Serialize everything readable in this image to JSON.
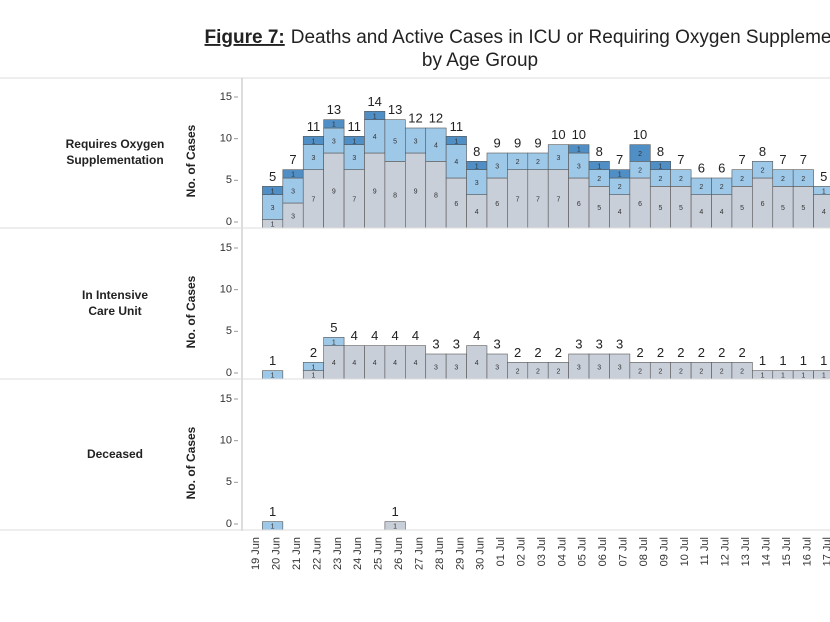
{
  "chart_data": {
    "type": "bar",
    "stacked": true,
    "title_prefix": "Figure 7:",
    "title": "Deaths and Active Cases in ICU or Requiring Oxygen Suppleme",
    "subtitle": "by Age Group",
    "ylabel": "No. of Cases",
    "ylim": [
      0,
      18
    ],
    "yticks": [
      0,
      5,
      10,
      15
    ],
    "categories": [
      "19 Jun",
      "20 Jun",
      "21 Jun",
      "22 Jun",
      "23 Jun",
      "24 Jun",
      "25 Jun",
      "26 Jun",
      "27 Jun",
      "28 Jun",
      "29 Jun",
      "30 Jun",
      "01 Jul",
      "02 Jul",
      "03 Jul",
      "04 Jul",
      "05 Jul",
      "06 Jul",
      "07 Jul",
      "08 Jul",
      "09 Jul",
      "10 Jul",
      "11 Jul",
      "12 Jul",
      "13 Jul",
      "14 Jul",
      "15 Jul",
      "16 Jul",
      "17 Jul"
    ],
    "panels": [
      {
        "label": "Requires Oxygen Supplementation",
        "series": [
          {
            "color": "#c9cfd9",
            "values": [
              null,
              1,
              3,
              7,
              9,
              7,
              9,
              8,
              9,
              8,
              6,
              4,
              6,
              7,
              7,
              7,
              6,
              5,
              4,
              6,
              5,
              5,
              4,
              4,
              5,
              6,
              5,
              5,
              4
            ]
          },
          {
            "color": "#9ec8e8",
            "values": [
              null,
              3,
              3,
              3,
              3,
              3,
              4,
              5,
              3,
              4,
              4,
              3,
              3,
              2,
              2,
              3,
              3,
              2,
              2,
              2,
              2,
              2,
              2,
              2,
              2,
              2,
              2,
              2,
              1
            ]
          },
          {
            "color": "#4f8fc6",
            "values": [
              null,
              1,
              1,
              1,
              1,
              1,
              1,
              0,
              0,
              0,
              1,
              1,
              0,
              0,
              0,
              0,
              1,
              1,
              1,
              2,
              1,
              0,
              0,
              0,
              0,
              0,
              0,
              0,
              0
            ]
          }
        ],
        "totals": [
          null,
          5,
          7,
          11,
          13,
          11,
          14,
          13,
          12,
          12,
          11,
          8,
          9,
          9,
          9,
          10,
          10,
          8,
          7,
          10,
          8,
          7,
          6,
          6,
          7,
          8,
          7,
          7,
          5
        ]
      },
      {
        "label": "In Intensive Care Unit",
        "series": [
          {
            "color": "#c9cfd9",
            "values": [
              null,
              0,
              null,
              1,
              4,
              4,
              4,
              4,
              4,
              3,
              3,
              4,
              3,
              2,
              2,
              2,
              3,
              3,
              3,
              2,
              2,
              2,
              2,
              2,
              2,
              1,
              1,
              1,
              1
            ]
          },
          {
            "color": "#9ec8e8",
            "values": [
              null,
              1,
              null,
              1,
              1,
              0,
              0,
              0,
              0,
              0,
              0,
              0,
              0,
              0,
              0,
              0,
              0,
              0,
              0,
              0,
              0,
              0,
              0,
              0,
              0,
              0,
              0,
              0,
              0
            ]
          }
        ],
        "totals": [
          null,
          1,
          null,
          2,
          5,
          4,
          4,
          4,
          4,
          3,
          3,
          4,
          3,
          2,
          2,
          2,
          3,
          3,
          3,
          2,
          2,
          2,
          2,
          2,
          2,
          1,
          1,
          1,
          1
        ]
      },
      {
        "label": "Deceased",
        "series": [
          {
            "color": "#c9cfd9",
            "values": [
              null,
              null,
              null,
              null,
              null,
              null,
              null,
              1,
              null,
              null,
              null,
              null,
              null,
              null,
              null,
              null,
              null,
              null,
              null,
              null,
              null,
              null,
              null,
              null,
              null,
              null,
              null,
              null,
              null
            ]
          },
          {
            "color": "#9ec8e8",
            "values": [
              null,
              1,
              null,
              null,
              null,
              null,
              null,
              null,
              null,
              null,
              null,
              null,
              null,
              null,
              null,
              null,
              null,
              null,
              null,
              null,
              null,
              null,
              null,
              null,
              null,
              null,
              null,
              null,
              null
            ]
          }
        ],
        "totals": [
          null,
          1,
          null,
          null,
          null,
          null,
          null,
          1,
          null,
          null,
          null,
          null,
          null,
          null,
          null,
          null,
          null,
          null,
          null,
          null,
          null,
          null,
          null,
          null,
          null,
          null,
          null,
          null,
          null
        ]
      }
    ]
  }
}
